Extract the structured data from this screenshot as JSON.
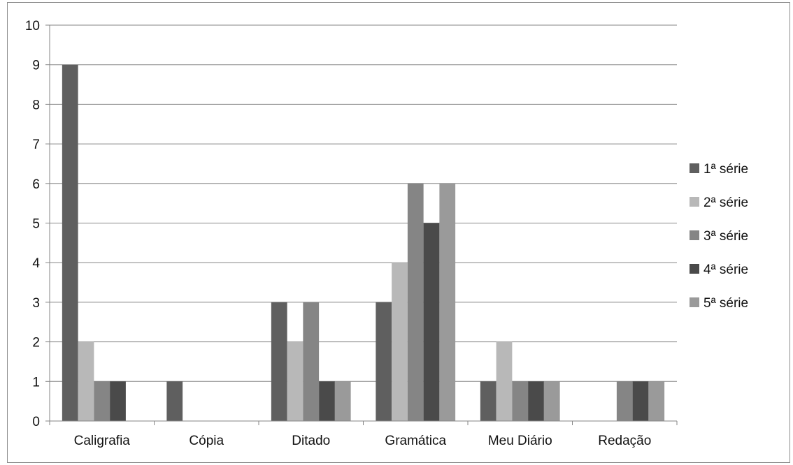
{
  "chart_data": {
    "type": "bar",
    "categories": [
      "Caligrafia",
      "Cópia",
      "Ditado",
      "Gramática",
      "Meu Diário",
      "Redação"
    ],
    "series": [
      {
        "name": "1ª série",
        "color": "#5f5f5f",
        "values": [
          9,
          1,
          3,
          3,
          1,
          0
        ]
      },
      {
        "name": "2ª série",
        "color": "#b8b8b8",
        "values": [
          2,
          0,
          2,
          4,
          2,
          0
        ]
      },
      {
        "name": "3ª série",
        "color": "#858585",
        "values": [
          1,
          0,
          3,
          6,
          1,
          1
        ]
      },
      {
        "name": "4ª série",
        "color": "#4a4a4a",
        "values": [
          1,
          0,
          1,
          5,
          1,
          1
        ]
      },
      {
        "name": "5ª série",
        "color": "#9a9a9a",
        "values": [
          0,
          0,
          1,
          6,
          1,
          1
        ]
      }
    ],
    "yticks": [
      "0",
      "1",
      "2",
      "3",
      "4",
      "5",
      "6",
      "7",
      "8",
      "9",
      "10"
    ],
    "ylim": [
      0,
      10
    ],
    "grid": true,
    "legend": "right"
  }
}
